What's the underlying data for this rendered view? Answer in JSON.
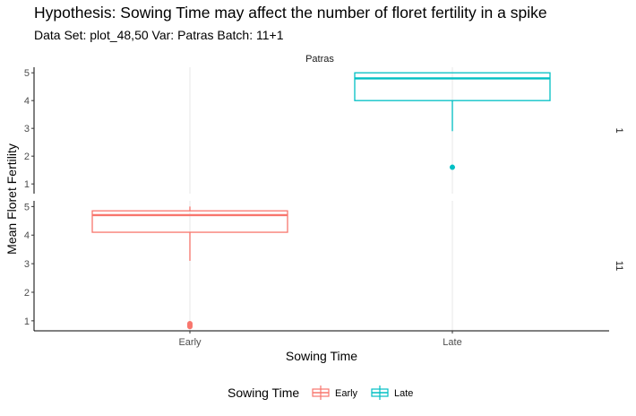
{
  "chart_data": {
    "type": "boxplot",
    "title": "Hypothesis: Sowing Time may affect the number of floret fertility in a spike",
    "subtitle": "Data Set: plot_48,50  Var: Patras Batch: 11+1",
    "xlabel": "Sowing Time",
    "ylabel": "Mean Floret Fertility",
    "facet_column": "Patras",
    "facet_rows": [
      "1",
      "11"
    ],
    "categories": [
      "Early",
      "Late"
    ],
    "ylim": [
      0.65,
      5.2
    ],
    "yticks": [
      1,
      2,
      3,
      4,
      5
    ],
    "colors": {
      "Early": "#F8766D",
      "Late": "#00BFC4"
    },
    "legend": {
      "title": "Sowing Time",
      "entries": [
        "Early",
        "Late"
      ],
      "position": "bottom"
    },
    "panels": [
      {
        "row": "1",
        "boxes": [
          {
            "category": "Late",
            "q1": 4.0,
            "median": 4.8,
            "q3": 5.0,
            "whisker_low": 2.9,
            "whisker_high": 5.0,
            "outliers": [
              1.6
            ]
          }
        ]
      },
      {
        "row": "11",
        "boxes": [
          {
            "category": "Early",
            "q1": 4.1,
            "median": 4.7,
            "q3": 4.85,
            "whisker_low": 3.1,
            "whisker_high": 5.0,
            "outliers": [
              0.8,
              0.85,
              0.9
            ]
          }
        ]
      }
    ]
  }
}
